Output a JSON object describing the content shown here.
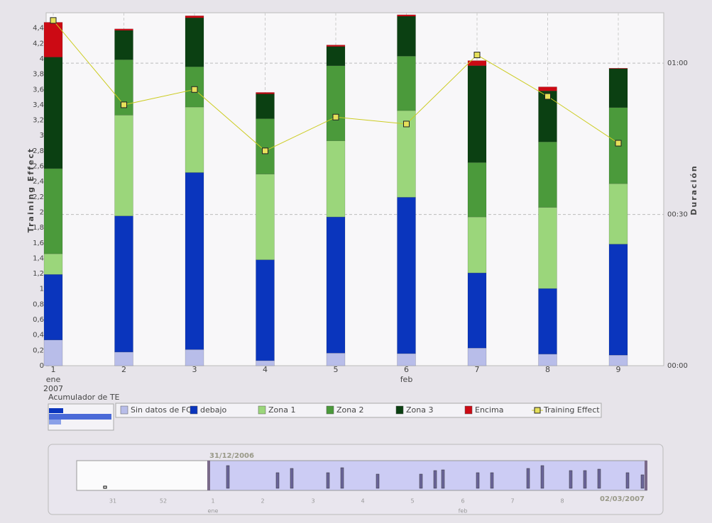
{
  "chart_data": {
    "type": "bar",
    "y_label": "Training Effect",
    "y2_label": "Duración",
    "categories": [
      "1",
      "2",
      "3",
      "4",
      "5",
      "6",
      "7",
      "8",
      "9"
    ],
    "x_month_labels": [
      "ene",
      null,
      null,
      null,
      null,
      "feb",
      null,
      null,
      null
    ],
    "x_year_labels": [
      "2007",
      null,
      null,
      null,
      null,
      null,
      null,
      null,
      null
    ],
    "ylim": [
      0,
      4.6
    ],
    "yticks": [
      0,
      {
        "value": 0.2,
        "label": "0,2"
      },
      {
        "value": 0.4,
        "label": "0,4"
      },
      {
        "value": 0.6,
        "label": "0,6"
      },
      {
        "value": 0.8,
        "label": "0,8"
      },
      1,
      {
        "value": 1.2,
        "label": "1,2"
      },
      {
        "value": 1.4,
        "label": "1,4"
      },
      {
        "value": 1.6,
        "label": "1,6"
      },
      {
        "value": 1.8,
        "label": "1,8"
      },
      2,
      {
        "value": 2.2,
        "label": "2,2"
      },
      {
        "value": 2.4,
        "label": "2,4"
      },
      {
        "value": 2.6,
        "label": "2,6"
      },
      {
        "value": 2.8,
        "label": "2,8"
      },
      3,
      {
        "value": 3.2,
        "label": "3,2"
      },
      {
        "value": 3.4,
        "label": "3,4"
      },
      {
        "value": 3.6,
        "label": "3,6"
      },
      {
        "value": 3.8,
        "label": "3,8"
      },
      4,
      {
        "value": 4.2,
        "label": "4,2"
      },
      {
        "value": 4.4,
        "label": "4,4"
      }
    ],
    "y2lim": [
      0,
      70
    ],
    "y2ticks": [
      {
        "value": 0,
        "label": "00:00"
      },
      {
        "value": 30,
        "label": "00:30"
      },
      {
        "value": 60,
        "label": "01:00"
      }
    ],
    "grid": true,
    "series": [
      {
        "name": "Sin datos de FC",
        "color": "#b8bde9",
        "axis": "y2",
        "values": [
          5.1,
          2.7,
          3.2,
          1.0,
          2.5,
          2.4,
          3.5,
          2.3,
          2.1
        ]
      },
      {
        "name": "debajo",
        "color": "#0a35bd",
        "axis": "y2",
        "values": [
          13.0,
          27.0,
          35.1,
          20.0,
          27.0,
          31.0,
          14.9,
          13.0,
          22.0
        ]
      },
      {
        "name": "Zona 1",
        "color": "#9bd67b",
        "axis": "y2",
        "values": [
          4.1,
          20.0,
          13.0,
          17.0,
          15.1,
          17.2,
          11.1,
          16.1,
          12.0
        ]
      },
      {
        "name": "Zona 2",
        "color": "#4b9a3b",
        "axis": "y2",
        "values": [
          16.9,
          11.0,
          8.0,
          11.0,
          14.9,
          10.8,
          10.8,
          13.0,
          15.1
        ]
      },
      {
        "name": "Zona 3",
        "color": "#0b4012",
        "axis": "y2",
        "values": [
          22.1,
          5.8,
          9.7,
          4.9,
          3.8,
          7.9,
          19.2,
          10.1,
          7.7
        ]
      },
      {
        "name": "Encima",
        "color": "#cc0a14",
        "axis": "y2",
        "values": [
          6.9,
          0.3,
          0.4,
          0.3,
          0.3,
          0.3,
          1.0,
          0.8,
          0.1
        ]
      },
      {
        "name": "Training Effect",
        "type": "line",
        "color": "#cccc22",
        "values": [
          4.5,
          3.4,
          3.6,
          2.8,
          3.24,
          3.15,
          4.05,
          3.51,
          2.9
        ]
      }
    ]
  },
  "accumulator": {
    "title": "Acumulador de TE"
  },
  "navigator": {
    "start_date": "31/12/2006",
    "end_date": "02/03/2007",
    "tick_labels": [
      "31",
      "52",
      "1",
      "2",
      "3",
      "4",
      "5",
      "6",
      "7",
      "8"
    ],
    "month_labels": [
      "ene",
      "feb"
    ]
  }
}
